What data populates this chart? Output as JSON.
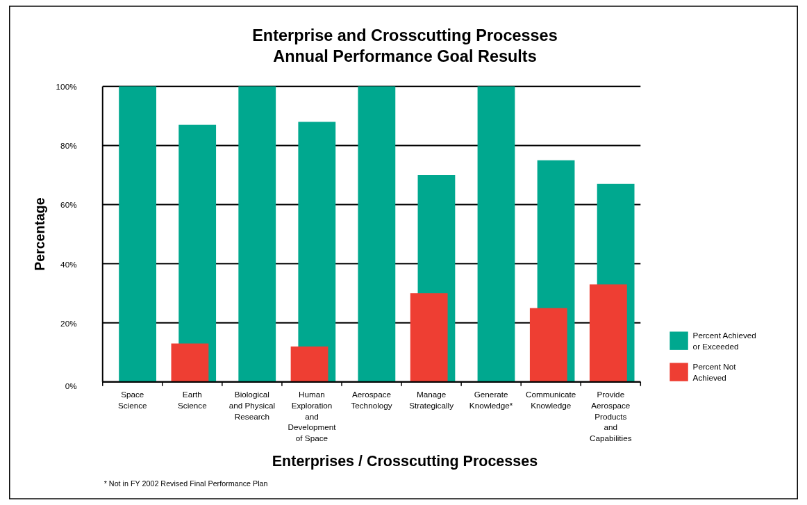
{
  "chart_data": {
    "type": "bar",
    "title": "Enterprise and Crosscutting Processes\nAnnual Performance Goal Results",
    "categories": [
      "Space Science",
      "Earth Science",
      "Biological and Physical Research",
      "Human Exploration and Development of Space",
      "Aerospace Technology",
      "Manage Strategically",
      "Generate Knowledge*",
      "Communicate Knowledge",
      "Provide Aerospace Products and Capabilities"
    ],
    "series": [
      {
        "name": "Percent Achieved or Exceeded",
        "color": "#00a88f",
        "values": [
          100,
          87,
          100,
          88,
          100,
          70,
          100,
          75,
          67
        ]
      },
      {
        "name": "Percent Not Achieved",
        "color": "#ee3e33",
        "values": [
          0,
          13,
          0,
          12,
          0,
          30,
          0,
          25,
          33
        ]
      }
    ],
    "ylim": [
      0,
      100
    ],
    "yticks": [
      {
        "value": 0,
        "label": "0%"
      },
      {
        "value": 20,
        "label": "20%"
      },
      {
        "value": 40,
        "label": "40%"
      },
      {
        "value": 60,
        "label": "60%"
      },
      {
        "value": 80,
        "label": "80%"
      },
      {
        "value": 100,
        "label": "100%"
      }
    ],
    "grid": "y",
    "legend": "right",
    "xlabel": "Enterprises / Crosscutting Processes",
    "ylabel": "Percentage",
    "annotations": [
      "* Not in FY 2002 Revised Final Performance Plan"
    ]
  }
}
